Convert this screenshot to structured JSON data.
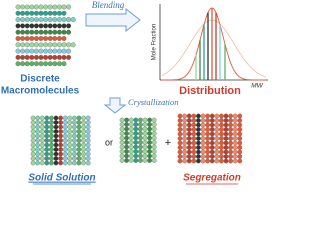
{
  "labels": {
    "discrete": [
      "Discrete",
      "Macromolecules"
    ],
    "blending": "Blending",
    "distribution": {
      "y_label": "Mole Fraction",
      "x_label": "MW",
      "title": "Distribution"
    },
    "crystallization": "Crystallization",
    "or": "or",
    "plus": "+",
    "solid_solution": "Solid Solution",
    "segregation": "Segregation"
  }
}
